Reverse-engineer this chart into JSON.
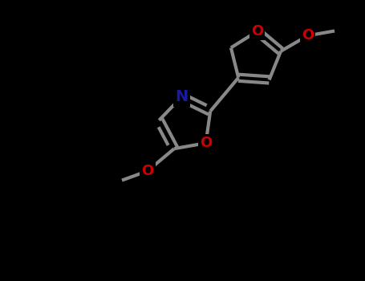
{
  "background_color": "#000000",
  "bond_color": "#888888",
  "N_color": "#1a1a9e",
  "O_color": "#cc0000",
  "lw": 3.0,
  "figsize": [
    4.55,
    3.5
  ],
  "dpi": 100,
  "xlim": [
    0,
    10
  ],
  "ylim": [
    0,
    7.7
  ]
}
